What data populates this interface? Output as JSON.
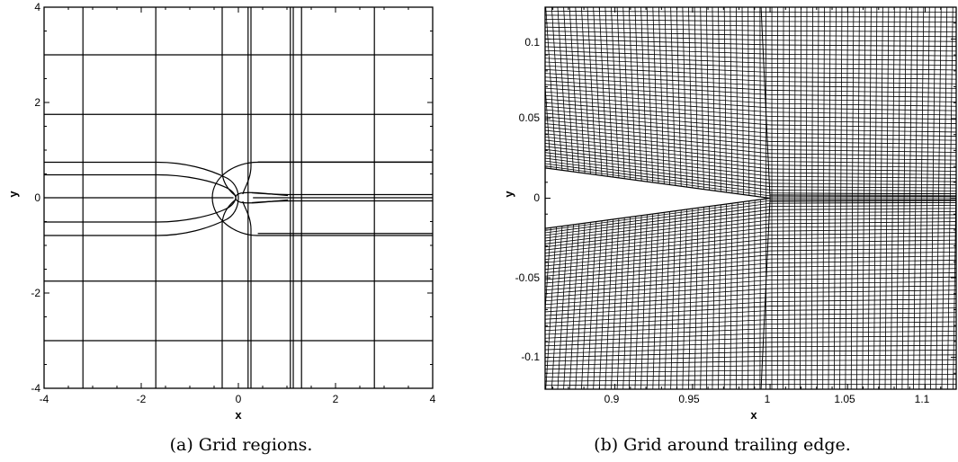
{
  "figure": {
    "panel_a": {
      "caption": "(a) Grid regions.",
      "xlabel": "x",
      "ylabel": "y",
      "xlim": [
        -4,
        4
      ],
      "ylim": [
        -4,
        4
      ],
      "xticks": [
        "-4",
        "-2",
        "0",
        "2",
        "4"
      ],
      "yticks": [
        "-4",
        "-2",
        "0",
        "2",
        "4"
      ],
      "vertical_grid_lines_x": [
        -3.2,
        -1.7,
        0.2,
        1.07,
        1.13,
        1.3,
        2.8
      ],
      "horizontal_grid_lines_y": [
        -3.0,
        -1.75,
        1.75,
        3.0
      ],
      "near_field_horizontal_y": [
        -0.75,
        0.75
      ],
      "wake_lines_y": [
        -0.08,
        -0.03,
        0.03,
        0.08
      ]
    },
    "panel_b": {
      "caption": "(b) Grid around trailing edge.",
      "xlabel": "x",
      "ylabel": "y",
      "xlim": [
        0.855,
        1.12
      ],
      "ylim": [
        -0.12,
        0.12
      ],
      "xticks": [
        "0.9",
        "0.95",
        "1",
        "1.05",
        "1.1"
      ],
      "yticks": [
        "0.1",
        "0.05",
        "0",
        "-0.05",
        "-0.1"
      ],
      "trailing_edge_x": 1.0,
      "upper_surface_y_at_left": 0.019,
      "lower_surface_y_at_left": -0.019
    }
  }
}
